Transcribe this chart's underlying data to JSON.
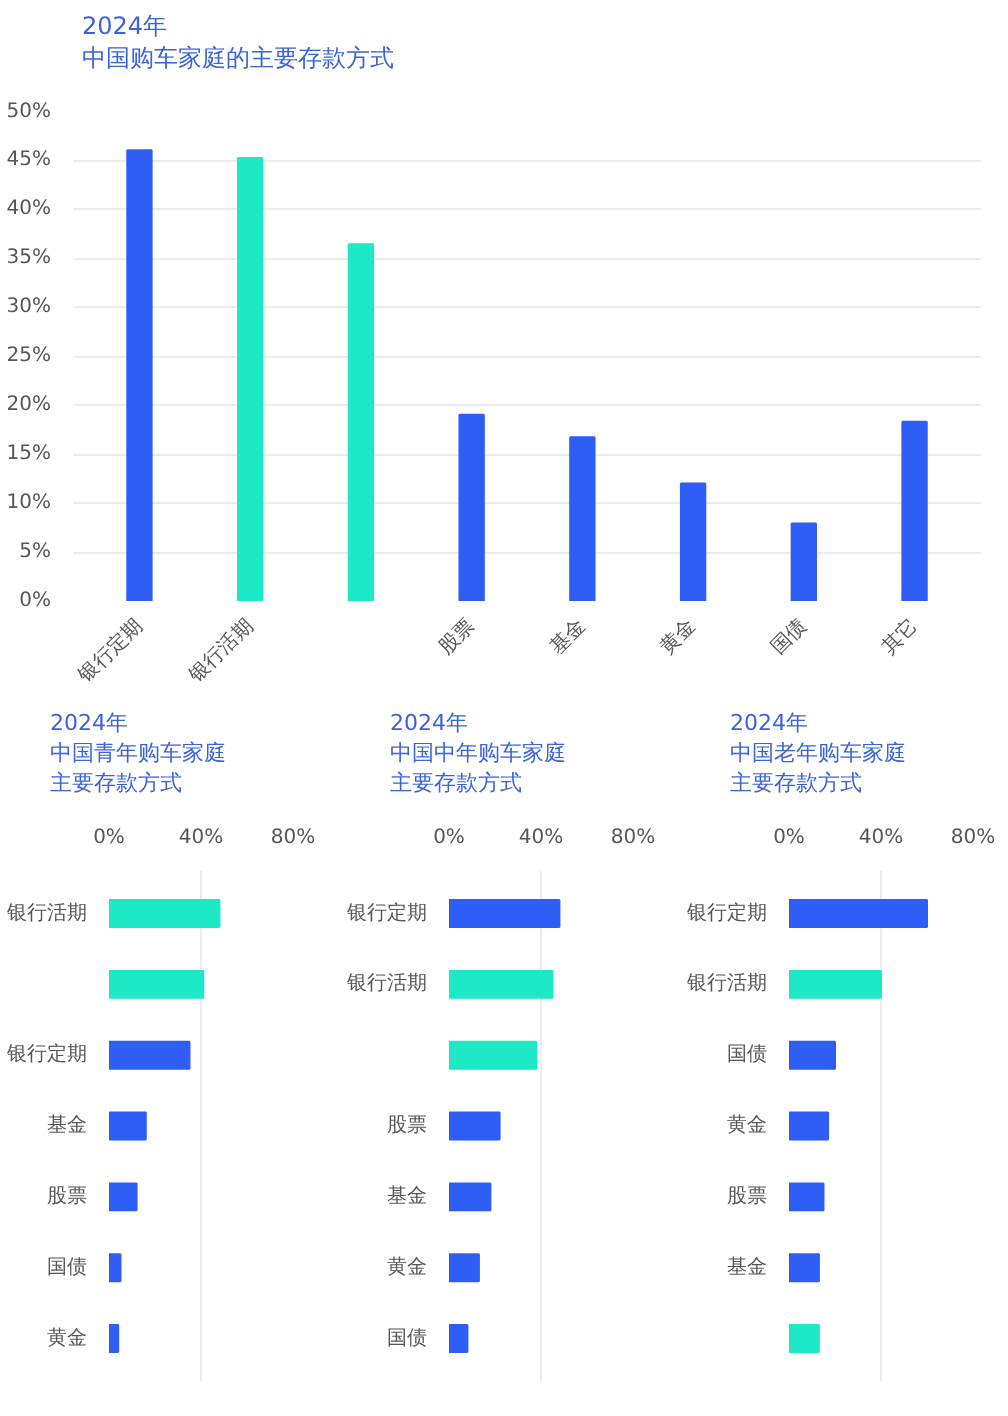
{
  "chart_data": [
    {
      "type": "bar",
      "title": "2024年",
      "subtitle": "中国购车家庭的主要存款方式",
      "categories": [
        "银行定期",
        "银行活期",
        null,
        "股票",
        "基金",
        "黄金",
        "国债",
        "其它"
      ],
      "values": [
        46.0,
        45.2,
        36.4,
        19.0,
        16.7,
        12.0,
        7.9,
        18.3
      ],
      "colors": [
        "#2f5ef6",
        "#1de9c6",
        "#1de9c6",
        "#2f5ef6",
        "#2f5ef6",
        "#2f5ef6",
        "#2f5ef6",
        "#2f5ef6"
      ],
      "ylim": [
        0,
        50
      ],
      "yticks": [
        {
          "value": 0,
          "label": "0%"
        },
        {
          "value": 5,
          "label": "5%"
        },
        {
          "value": 10,
          "label": "10%"
        },
        {
          "value": 15,
          "label": "15%"
        },
        {
          "value": 20,
          "label": "20%"
        },
        {
          "value": 25,
          "label": "25%"
        },
        {
          "value": 30,
          "label": "30%"
        },
        {
          "value": 35,
          "label": "35%"
        },
        {
          "value": 40,
          "label": "40%"
        },
        {
          "value": 45,
          "label": "45%"
        },
        {
          "value": 50,
          "label": "50%"
        }
      ],
      "grid": "y"
    },
    {
      "type": "bar",
      "orientation": "horizontal",
      "title": "2024年",
      "subtitle": "中国青年购车家庭主要存款方式",
      "categories": [
        "银行活期",
        null,
        "银行定期",
        "基金",
        "股票",
        "国债",
        "黄金"
      ],
      "values": [
        48,
        41,
        35,
        16,
        12,
        5,
        4
      ],
      "colors": [
        "#1de9c6",
        "#1de9c6",
        "#2f5ef6",
        "#2f5ef6",
        "#2f5ef6",
        "#2f5ef6",
        "#2f5ef6"
      ],
      "xlim": [
        0,
        80
      ],
      "xticks": [
        {
          "value": 0,
          "label": "0%"
        },
        {
          "value": 40,
          "label": "40%"
        },
        {
          "value": 80,
          "label": "80%"
        }
      ],
      "grid": "x"
    },
    {
      "type": "bar",
      "orientation": "horizontal",
      "title": "2024年",
      "subtitle": "中国中年购车家庭主要存款方式",
      "categories": [
        "银行定期",
        "银行活期",
        null,
        "股票",
        "基金",
        "黄金",
        "国债"
      ],
      "values": [
        48,
        45,
        38,
        22,
        18,
        13,
        8
      ],
      "colors": [
        "#2f5ef6",
        "#1de9c6",
        "#1de9c6",
        "#2f5ef6",
        "#2f5ef6",
        "#2f5ef6",
        "#2f5ef6"
      ],
      "xlim": [
        0,
        80
      ],
      "xticks": [
        {
          "value": 0,
          "label": "0%"
        },
        {
          "value": 40,
          "label": "40%"
        },
        {
          "value": 80,
          "label": "80%"
        }
      ],
      "grid": "x"
    },
    {
      "type": "bar",
      "orientation": "horizontal",
      "title": "2024年",
      "subtitle": "中国老年购车家庭主要存款方式",
      "categories": [
        "银行定期",
        "银行活期",
        "国债",
        "黄金",
        "股票",
        "基金",
        null
      ],
      "values": [
        60,
        40,
        20,
        17,
        15,
        13,
        13
      ],
      "colors": [
        "#2f5ef6",
        "#1de9c6",
        "#2f5ef6",
        "#2f5ef6",
        "#2f5ef6",
        "#2f5ef6",
        "#1de9c6"
      ],
      "xlim": [
        0,
        80
      ],
      "xticks": [
        {
          "value": 0,
          "label": "0%"
        },
        {
          "value": 40,
          "label": "40%"
        },
        {
          "value": 80,
          "label": "80%"
        }
      ],
      "grid": "x"
    }
  ]
}
